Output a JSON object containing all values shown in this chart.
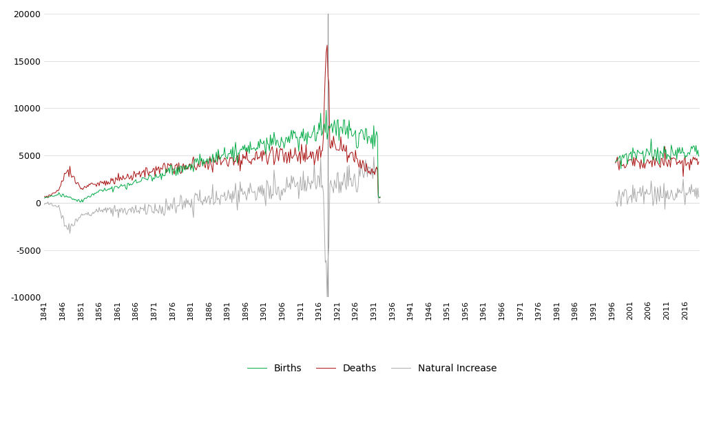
{
  "title": "",
  "birth_color": "#00AA44",
  "death_color": "#AA1111",
  "natural_color": "#AAAAAA",
  "background_color": "#FFFFFF",
  "ylim": [
    -10000,
    20000
  ],
  "xlim": [
    1841,
    2020
  ],
  "yticks": [
    -10000,
    -5000,
    0,
    5000,
    10000,
    15000,
    20000
  ],
  "xtick_years": [
    1841,
    1846,
    1851,
    1856,
    1861,
    1866,
    1871,
    1876,
    1881,
    1886,
    1891,
    1896,
    1901,
    1906,
    1911,
    1916,
    1921,
    1926,
    1931,
    1936,
    1941,
    1946,
    1951,
    1956,
    1961,
    1966,
    1971,
    1976,
    1981,
    1986,
    1991,
    1996,
    2001,
    2006,
    2011,
    2016
  ],
  "gap_start": 1933,
  "gap_end": 1997,
  "legend_labels": [
    "Births",
    "Deaths",
    "Natural Increase"
  ],
  "vertical_line_year": 1918.5,
  "seed": 99
}
